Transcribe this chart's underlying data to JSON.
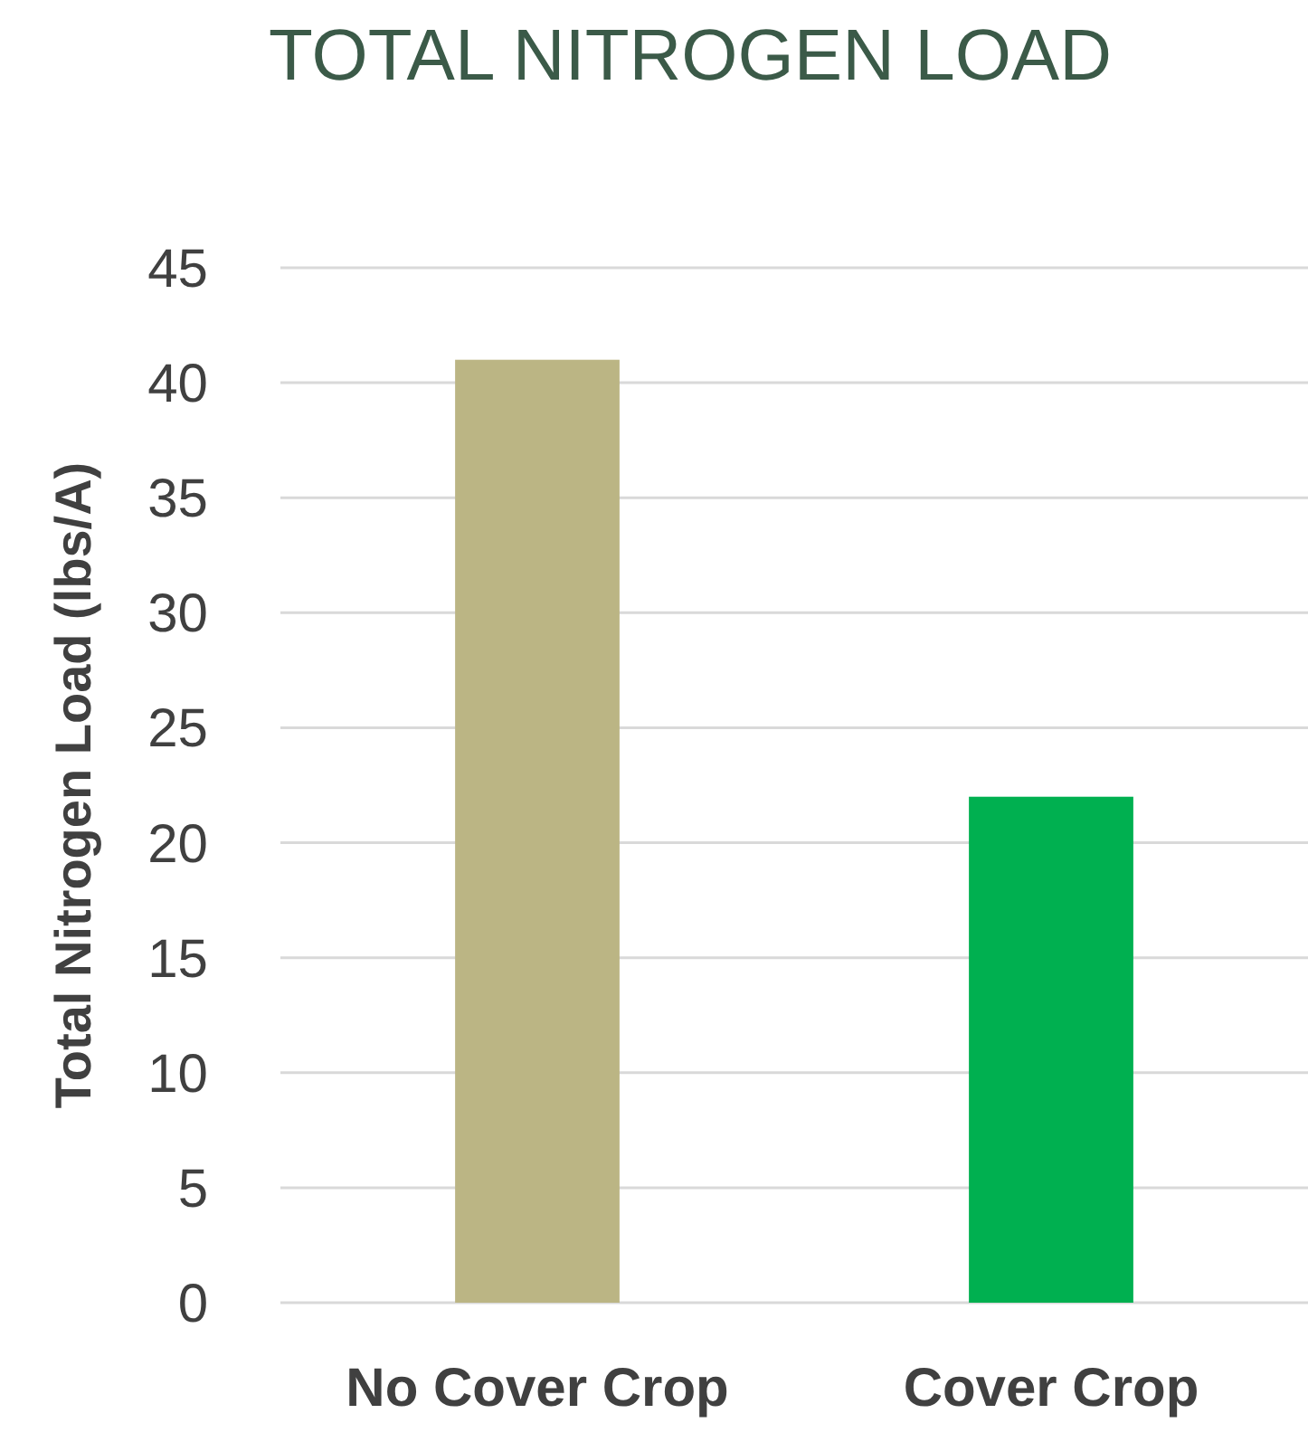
{
  "chart_data": {
    "type": "bar",
    "title": "TOTAL NITROGEN LOAD",
    "ylabel": "Total Nitrogen Load (lbs/A)",
    "categories": [
      "No Cover Crop",
      "Cover Crop"
    ],
    "values": [
      41,
      22
    ],
    "colors": [
      "#bbb584",
      "#00b050"
    ],
    "ylim": [
      0,
      45
    ],
    "yticks": [
      0,
      5,
      10,
      15,
      20,
      25,
      30,
      35,
      40,
      45
    ],
    "grid": "y"
  }
}
